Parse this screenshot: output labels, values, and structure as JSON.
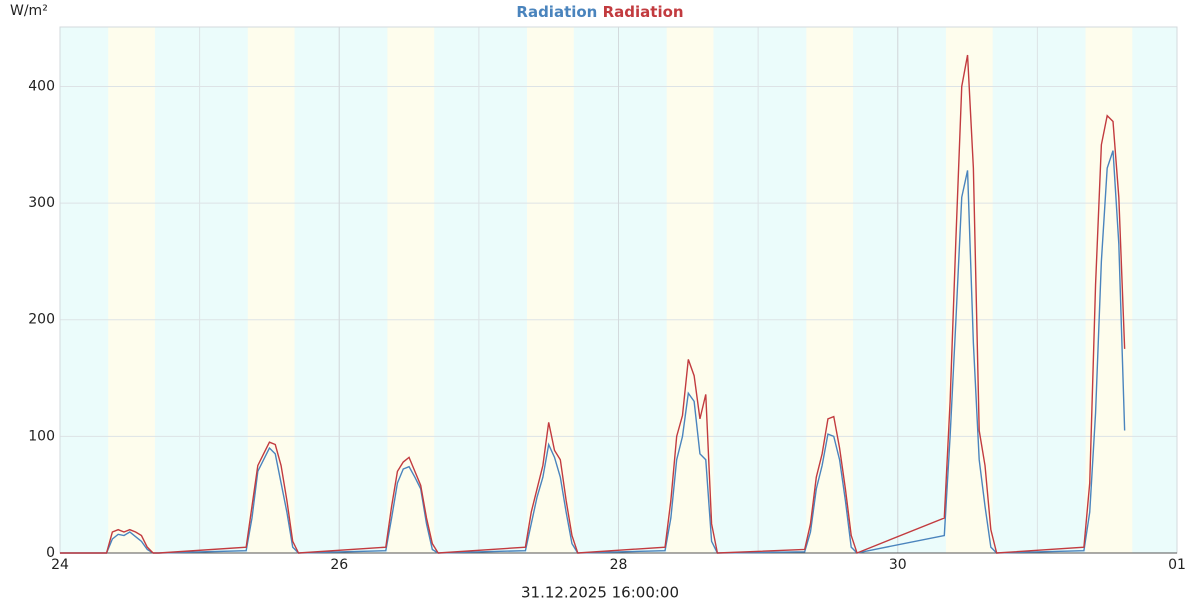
{
  "chart_data": {
    "type": "line",
    "y_label": "W/m²",
    "x_label": "31.12.2025 16:00:00",
    "x": [
      24,
      24.3333,
      24.375,
      24.4167,
      24.4583,
      24.5,
      24.5417,
      24.5833,
      24.625,
      24.6667,
      24.7083,
      25.3333,
      25.375,
      25.4167,
      25.4583,
      25.5,
      25.5417,
      25.5833,
      25.625,
      25.6667,
      25.7083,
      26.3333,
      26.375,
      26.4167,
      26.4583,
      26.5,
      26.5417,
      26.5833,
      26.625,
      26.6667,
      26.7083,
      27.3333,
      27.375,
      27.4167,
      27.4583,
      27.5,
      27.5417,
      27.5833,
      27.625,
      27.6667,
      27.7083,
      28.3333,
      28.375,
      28.4167,
      28.4583,
      28.5,
      28.5417,
      28.5833,
      28.625,
      28.6667,
      28.7083,
      29.3333,
      29.375,
      29.4167,
      29.4583,
      29.5,
      29.5417,
      29.5833,
      29.625,
      29.6667,
      29.7083,
      30.3333,
      30.375,
      30.4167,
      30.4583,
      30.5,
      30.5417,
      30.5833,
      30.625,
      30.6667,
      30.7083,
      31.3333,
      31.375,
      31.4167,
      31.4583,
      31.5,
      31.5417,
      31.5833,
      31.625
    ],
    "series": [
      {
        "name": "Radiation",
        "color": "#4a84bd",
        "values": [
          0,
          0,
          12,
          16,
          15,
          18,
          14,
          10,
          3,
          0,
          0,
          2,
          30,
          70,
          80,
          90,
          85,
          60,
          35,
          5,
          0,
          2,
          30,
          60,
          72,
          74,
          65,
          55,
          25,
          3,
          0,
          2,
          25,
          48,
          65,
          93,
          82,
          65,
          35,
          8,
          0,
          2,
          30,
          80,
          100,
          137,
          130,
          85,
          80,
          10,
          0,
          1,
          18,
          55,
          75,
          102,
          100,
          80,
          45,
          5,
          0,
          15,
          100,
          200,
          305,
          328,
          180,
          80,
          40,
          5,
          0,
          2,
          35,
          120,
          250,
          330,
          345,
          265,
          105
        ]
      },
      {
        "name": "Radiation",
        "color": "#c23b3f",
        "values": [
          0,
          0,
          18,
          20,
          18,
          20,
          18,
          15,
          5,
          0,
          0,
          5,
          40,
          75,
          85,
          95,
          93,
          75,
          45,
          10,
          0,
          5,
          40,
          70,
          78,
          82,
          70,
          58,
          30,
          8,
          0,
          5,
          35,
          55,
          75,
          112,
          88,
          80,
          45,
          15,
          0,
          5,
          45,
          100,
          118,
          166,
          152,
          115,
          136,
          25,
          0,
          3,
          25,
          65,
          85,
          115,
          117,
          90,
          55,
          15,
          0,
          30,
          130,
          270,
          400,
          427,
          330,
          105,
          75,
          20,
          0,
          5,
          60,
          230,
          350,
          375,
          370,
          305,
          175
        ]
      }
    ],
    "xlim": [
      24,
      32
    ],
    "xticks": [
      24,
      26,
      28,
      30,
      {
        "value": 32,
        "label": "01"
      }
    ],
    "ylim": [
      0,
      451
    ],
    "yticks": [
      0,
      100,
      200,
      300,
      400
    ],
    "grid": true
  }
}
